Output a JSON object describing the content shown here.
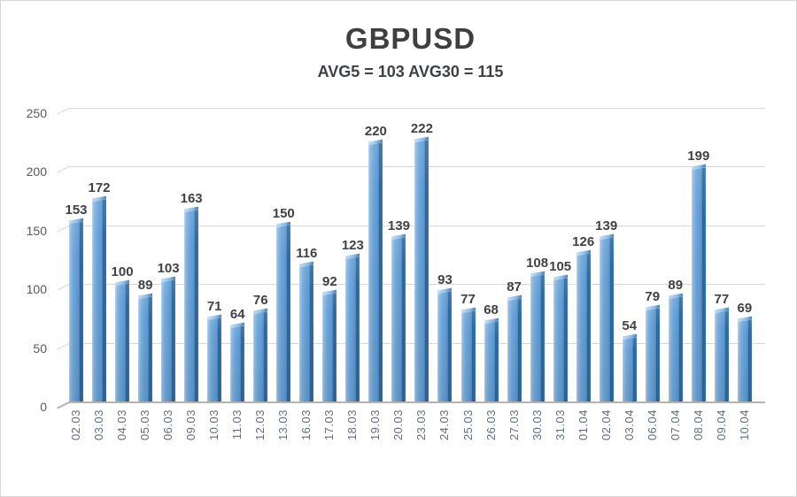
{
  "header": {
    "title": "GBPUSD",
    "subtitle": "AVG5 = 103 AVG30 = 115"
  },
  "chart_data": {
    "type": "bar",
    "title": "GBPUSD",
    "subtitle": "AVG5 = 103 AVG30 = 115",
    "avg5": 103,
    "avg30": 115,
    "categories": [
      "02.03",
      "03.03",
      "04.03",
      "05.03",
      "06.03",
      "09.03",
      "10.03",
      "11.03",
      "12.03",
      "13.03",
      "16.03",
      "17.03",
      "18.03",
      "19.03",
      "20.03",
      "23.03",
      "24.03",
      "25.03",
      "26.03",
      "27.03",
      "30.03",
      "31.03",
      "01.04",
      "02.04",
      "03.04",
      "06.04",
      "07.04",
      "08.04",
      "09.04",
      "10.04"
    ],
    "values": [
      153,
      172,
      100,
      89,
      103,
      163,
      71,
      64,
      76,
      150,
      116,
      92,
      123,
      220,
      139,
      222,
      93,
      77,
      68,
      87,
      108,
      105,
      126,
      139,
      54,
      79,
      89,
      199,
      77,
      69
    ],
    "value_labels_shown": true,
    "ylim": [
      0,
      250
    ],
    "yticks": [
      0,
      50,
      100,
      150,
      200,
      250
    ],
    "xlabel": "",
    "ylabel": "",
    "grid": "horizontal",
    "legend": "none",
    "style_3d": true,
    "colors": {
      "bar_main": "#5e9bd3",
      "bar_highlight": "#b7d3ee",
      "bar_shadow_edge": "#2b6296",
      "value_label": "#3e4247",
      "axis_tick_label": "#595959",
      "category_label": "#626e7e",
      "gridline": "#d8d8d8",
      "baseline": "#b3b3b3",
      "title": "#3f3f3f",
      "background": "#ffffff"
    }
  }
}
